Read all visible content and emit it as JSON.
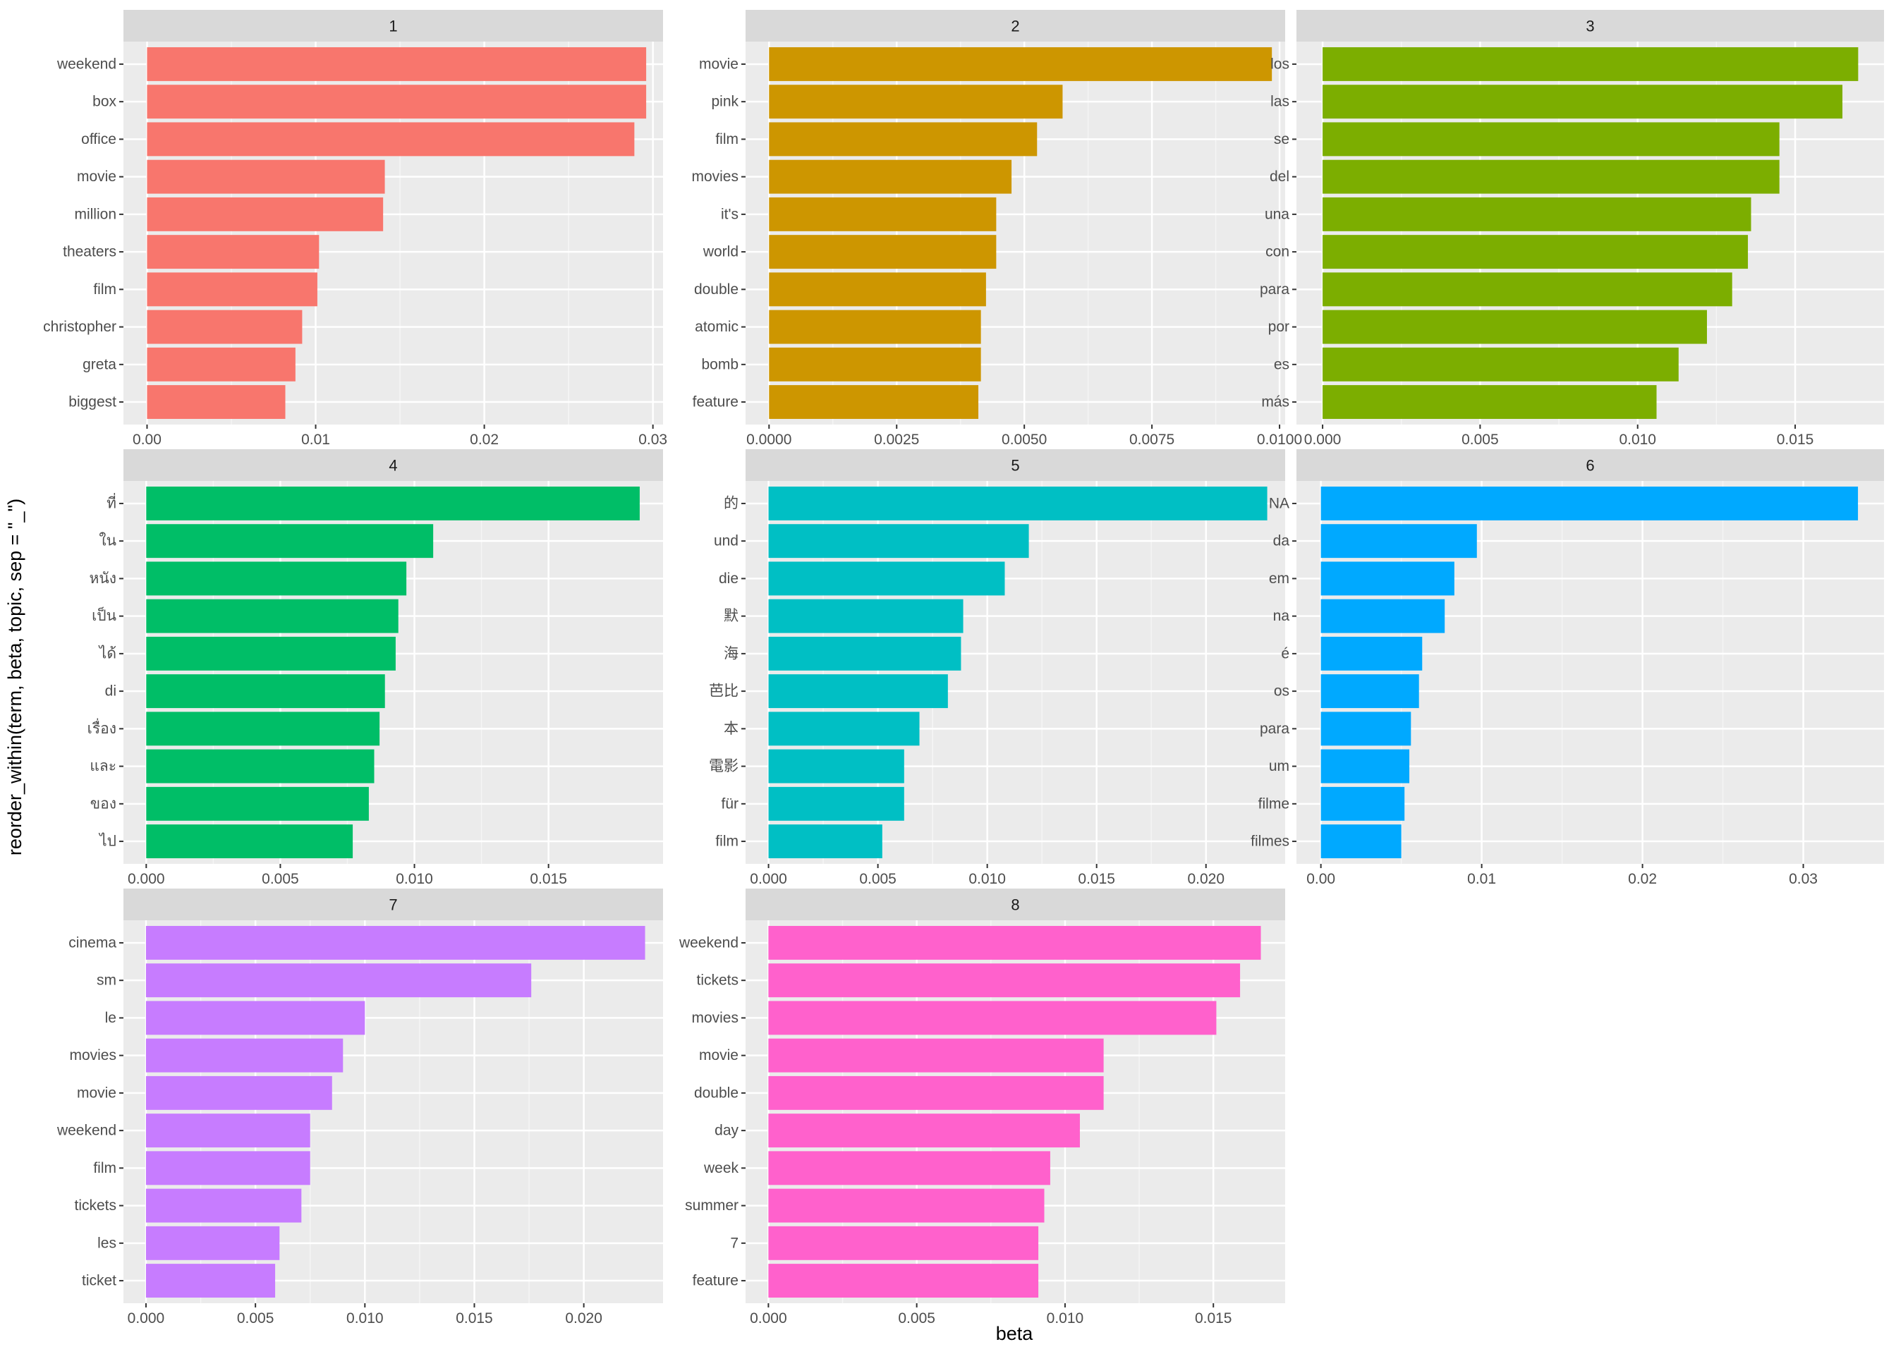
{
  "chart_data": {
    "type": "bar",
    "orientation": "horizontal",
    "facet_layout": "3 columns, 3 rows",
    "xlabel": "beta",
    "ylabel": "reorder_within(term, beta, topic, sep = \"_\")",
    "panels": [
      {
        "title": "1",
        "color": "#F8766D",
        "xlim": [
          -0.0014,
          0.0306
        ],
        "ticks": [
          0.0,
          0.01,
          0.02,
          0.03
        ],
        "tick_labels": [
          "0.00",
          "0.01",
          "0.02",
          "0.03"
        ],
        "terms": [
          "weekend",
          "box",
          "office",
          "movie",
          "million",
          "theaters",
          "film",
          "christopher",
          "greta",
          "biggest"
        ],
        "values": [
          0.0296,
          0.0296,
          0.0289,
          0.0141,
          0.014,
          0.0102,
          0.0101,
          0.0092,
          0.0088,
          0.0082
        ]
      },
      {
        "title": "2",
        "color": "#CD9600",
        "xlim": [
          -0.00046,
          0.01011
        ],
        "ticks": [
          0.0,
          0.0025,
          0.005,
          0.0075,
          0.01
        ],
        "tick_labels": [
          "0.0000",
          "0.0025",
          "0.0050",
          "0.0075",
          "0.0100"
        ],
        "terms": [
          "movie",
          "pink",
          "film",
          "movies",
          "it's",
          "world",
          "double",
          "atomic",
          "bomb",
          "feature"
        ],
        "values": [
          0.00985,
          0.00575,
          0.00525,
          0.00475,
          0.00445,
          0.00445,
          0.00425,
          0.00415,
          0.00415,
          0.0041
        ]
      },
      {
        "title": "3",
        "color": "#7CAE00",
        "xlim": [
          -0.00083,
          0.01782
        ],
        "ticks": [
          0.0,
          0.005,
          0.01,
          0.015
        ],
        "tick_labels": [
          "0.000",
          "0.005",
          "0.010",
          "0.015"
        ],
        "terms": [
          "los",
          "las",
          "se",
          "del",
          "una",
          "con",
          "para",
          "por",
          "es",
          "más"
        ],
        "values": [
          0.017,
          0.0165,
          0.0145,
          0.0145,
          0.0136,
          0.0135,
          0.013,
          0.0122,
          0.0113,
          0.0106
        ]
      },
      {
        "title": "4",
        "color": "#00BE67",
        "xlim": [
          -0.00085,
          0.01927
        ],
        "ticks": [
          0.0,
          0.005,
          0.01,
          0.015
        ],
        "tick_labels": [
          "0.000",
          "0.005",
          "0.010",
          "0.015"
        ],
        "terms": [
          "ที่",
          "ใน",
          "หนัง",
          "เป็น",
          "ได้",
          "di",
          "เรื่อง",
          "และ",
          "ของ",
          "ไป"
        ],
        "values": [
          0.0184,
          0.0107,
          0.0097,
          0.0094,
          0.0093,
          0.0089,
          0.0087,
          0.0085,
          0.0083,
          0.0077
        ]
      },
      {
        "title": "5",
        "color": "#00BFC4",
        "xlim": [
          -0.00105,
          0.02362
        ],
        "ticks": [
          0.0,
          0.005,
          0.01,
          0.015,
          0.02
        ],
        "tick_labels": [
          "0.000",
          "0.005",
          "0.010",
          "0.015",
          "0.020"
        ],
        "terms": [
          "的",
          "und",
          "die",
          "默",
          "海",
          "芭比",
          "本",
          "電影",
          "für",
          "film"
        ],
        "values": [
          0.0228,
          0.0119,
          0.0108,
          0.0089,
          0.0088,
          0.0082,
          0.0069,
          0.0062,
          0.0062,
          0.0052
        ]
      },
      {
        "title": "6",
        "color": "#00A9FF",
        "xlim": [
          -0.00152,
          0.03502
        ],
        "ticks": [
          0.0,
          0.01,
          0.02,
          0.03
        ],
        "tick_labels": [
          "0.00",
          "0.01",
          "0.02",
          "0.03"
        ],
        "terms": [
          "NA",
          "da",
          "em",
          "na",
          "é",
          "os",
          "para",
          "um",
          "filme",
          "filmes"
        ],
        "values": [
          0.0334,
          0.0097,
          0.0083,
          0.0077,
          0.0063,
          0.0061,
          0.0056,
          0.0055,
          0.0052,
          0.005
        ]
      },
      {
        "title": "7",
        "color": "#C77CFF",
        "xlim": [
          -0.00103,
          0.02362
        ],
        "ticks": [
          0.0,
          0.005,
          0.01,
          0.015,
          0.02
        ],
        "tick_labels": [
          "0.000",
          "0.005",
          "0.010",
          "0.015",
          "0.020"
        ],
        "terms": [
          "cinema",
          "sm",
          "le",
          "movies",
          "movie",
          "weekend",
          "film",
          "tickets",
          "les",
          "ticket"
        ],
        "values": [
          0.0228,
          0.0176,
          0.01,
          0.009,
          0.0085,
          0.0075,
          0.0075,
          0.0071,
          0.0061,
          0.0059
        ]
      },
      {
        "title": "8",
        "color": "#FF61CC",
        "xlim": [
          -0.00077,
          0.01742
        ],
        "ticks": [
          0.0,
          0.005,
          0.01,
          0.015
        ],
        "tick_labels": [
          "0.000",
          "0.005",
          "0.010",
          "0.015"
        ],
        "terms": [
          "weekend",
          "tickets",
          "movies",
          "movie",
          "double",
          "day",
          "week",
          "summer",
          "7",
          "feature"
        ],
        "values": [
          0.0166,
          0.0159,
          0.0151,
          0.0113,
          0.0113,
          0.0105,
          0.0095,
          0.0093,
          0.0091,
          0.0091
        ]
      }
    ]
  }
}
